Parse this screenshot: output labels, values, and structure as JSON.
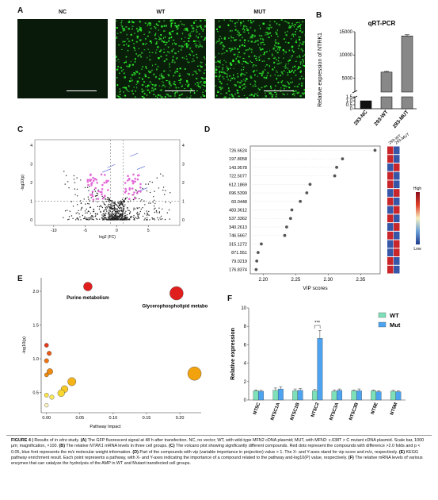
{
  "panels": {
    "A": {
      "letter": "A",
      "labels": [
        "NC",
        "WT",
        "MUT"
      ]
    },
    "B": {
      "letter": "B",
      "title": "qRT-PCR"
    },
    "C": {
      "letter": "C"
    },
    "D": {
      "letter": "D",
      "legend_high": "High",
      "legend_low": "Low",
      "column_labels": [
        "293-WT",
        "293-MUT"
      ]
    },
    "E": {
      "letter": "E"
    },
    "F": {
      "letter": "F"
    }
  },
  "chart_data": [
    {
      "id": "B",
      "type": "bar",
      "title": "qRT-PCR",
      "ylabel": "Relative expression of NTRK1",
      "categories": [
        "293-NC",
        "293-WT",
        "293-MUT"
      ],
      "values": [
        1.0,
        6300,
        14100
      ],
      "errors": [
        0.03,
        150,
        250
      ],
      "yticks": [
        "0",
        "0.5",
        "1.0",
        "1.5",
        "2000",
        "5000",
        "10000",
        "15000"
      ],
      "axis_break": true
    },
    {
      "id": "C",
      "type": "scatter",
      "xlabel": "log2 (FC)",
      "ylabel": "-log10(p)",
      "xticks": [
        "-10",
        "-5",
        "0",
        "5"
      ],
      "yticks": [
        "0",
        "1",
        "2",
        "3",
        "4"
      ],
      "right_yticks": [
        "0",
        "1",
        "2",
        "3",
        "4"
      ],
      "threshold_lines": true
    },
    {
      "id": "D",
      "type": "scatter",
      "xlabel": "VIP scores",
      "xlim": [
        2.18,
        2.38
      ],
      "xticks": [
        "2.20",
        "2.25",
        "2.30",
        "2.35"
      ],
      "categories": [
        "726.6624",
        "197.8058",
        "143.9578",
        "722.5077",
        "612.1869",
        "696.5399",
        "60.0448",
        "483.3612",
        "537.3362",
        "340.2613",
        "746.5667",
        "315.1272",
        "871.551",
        "79.0219",
        "176.8374"
      ],
      "values": [
        2.372,
        2.322,
        2.313,
        2.31,
        2.272,
        2.267,
        2.257,
        2.244,
        2.242,
        2.236,
        2.233,
        2.197,
        2.192,
        2.19,
        2.189
      ],
      "heatmap": [
        [
          1,
          0
        ],
        [
          1,
          0
        ],
        [
          0,
          1
        ],
        [
          1,
          0
        ],
        [
          1,
          0
        ],
        [
          0,
          1
        ],
        [
          1,
          0
        ],
        [
          0,
          1
        ],
        [
          1,
          0
        ],
        [
          0,
          1
        ],
        [
          1,
          0
        ],
        [
          0,
          1
        ],
        [
          0,
          1
        ],
        [
          1,
          0
        ],
        [
          1,
          0
        ]
      ]
    },
    {
      "id": "E",
      "type": "scatter",
      "xlabel": "Pathway Impact",
      "ylabel": "-log10(p)",
      "xticks": [
        "0.00",
        "0.05",
        "0.10",
        "0.15",
        "0.20"
      ],
      "yticks": [
        "0.5",
        "1.0",
        "1.5",
        "2.0"
      ],
      "points": [
        {
          "x": 0.062,
          "y": 2.07,
          "r": 5.5,
          "color": "#e01e1e",
          "label": "Purine metabolism"
        },
        {
          "x": 0.195,
          "y": 1.97,
          "r": 8.5,
          "color": "#e01e1e",
          "label": "Glycerophospholipid metabolism"
        },
        {
          "x": 0.222,
          "y": 0.78,
          "r": 8.5,
          "color": "#f2a20c"
        },
        {
          "x": 0.0,
          "y": 1.2,
          "r": 2.6,
          "color": "#e43a1a"
        },
        {
          "x": 0.004,
          "y": 1.08,
          "r": 2.8,
          "color": "#ea5a14"
        },
        {
          "x": 0.0,
          "y": 0.97,
          "r": 2.8,
          "color": "#ee7412"
        },
        {
          "x": 0.005,
          "y": 0.81,
          "r": 3.8,
          "color": "#ef8a10"
        },
        {
          "x": 0.0,
          "y": 0.76,
          "r": 2.6,
          "color": "#f08a10"
        },
        {
          "x": 0.038,
          "y": 0.66,
          "r": 5.2,
          "color": "#f4b418"
        },
        {
          "x": 0.027,
          "y": 0.55,
          "r": 4.4,
          "color": "#f6c826"
        },
        {
          "x": 0.022,
          "y": 0.49,
          "r": 4.4,
          "color": "#f8d830"
        },
        {
          "x": 0.0,
          "y": 0.46,
          "r": 2.6,
          "color": "#fae44a"
        },
        {
          "x": 0.008,
          "y": 0.43,
          "r": 2.8,
          "color": "#fbe85a"
        },
        {
          "x": 0.0,
          "y": 0.31,
          "r": 2.4,
          "color": "#fdf4c0"
        }
      ]
    },
    {
      "id": "F",
      "type": "bar",
      "ylabel": "Relative expression",
      "ylim": [
        0,
        10
      ],
      "yticks": [
        "0",
        "2",
        "4",
        "6",
        "8",
        "10"
      ],
      "categories": [
        "NT5C",
        "NT5C1A",
        "NT5C1B",
        "NT5C2",
        "NT5C3A",
        "NT5C3B",
        "NT5E",
        "NT5M"
      ],
      "series": [
        {
          "name": "WT",
          "color": "#7ee0b8",
          "values": [
            1.0,
            1.05,
            1.0,
            1.0,
            0.95,
            1.0,
            1.0,
            0.95
          ],
          "errors": [
            0.1,
            0.25,
            0.2,
            0.15,
            0.15,
            0.1,
            0.1,
            0.1
          ]
        },
        {
          "name": "Mut",
          "color": "#4da3f0",
          "values": [
            0.95,
            1.2,
            1.05,
            6.7,
            1.05,
            1.0,
            0.9,
            0.9
          ],
          "errors": [
            0.1,
            0.25,
            0.2,
            0.85,
            0.15,
            0.2,
            0.1,
            0.1
          ]
        }
      ],
      "annotation": "***"
    }
  ],
  "caption": {
    "fig_label": "FIGURE 4 |",
    "p1": " Results of ",
    "p1_it": "in vitro",
    "p2": " study. ",
    "a_lbl": "(A)",
    "a_txt": " The GFP fluorescent signal at 48 h after transfection. NC, no vector; WT, with wild-type MFN2 cDNA plasmid; MUT, with MFN2: c.638T > C mutant cDNA plasmid. Scale bar, 1000 μm; magnification, ×100. ",
    "b_lbl": "(B)",
    "b_txt1": " The relative ",
    "b_it": "NTRK1",
    "b_txt2": " mRNA levels in three cell groups. ",
    "c_lbl": "(C)",
    "c_txt": " The volcano plot showing significantly different compounds. Red dots represent the compounds with difference >2.0 folds and p < 0.05, blue font represents the m/z molecular weight information. ",
    "d_lbl": "(D)",
    "d_txt": " Part of the compounds with vip (variable importance in projection) value > 1. The X- and Y-axes stand for vip score and m/z, respectively. ",
    "e_lbl": "(E)",
    "e_txt": " KEGG pathway enrichment result. Each point represents a pathway, with X- and Y-axes indicating the importance of a compound related to the pathway and-log10(P) value, respectively. ",
    "f_lbl": "(F)",
    "f_txt": " The relative mRNA levels of various enzymes that can catalyze the hydrolysis of the AMP in WT and Mutant transfected cell groups."
  }
}
